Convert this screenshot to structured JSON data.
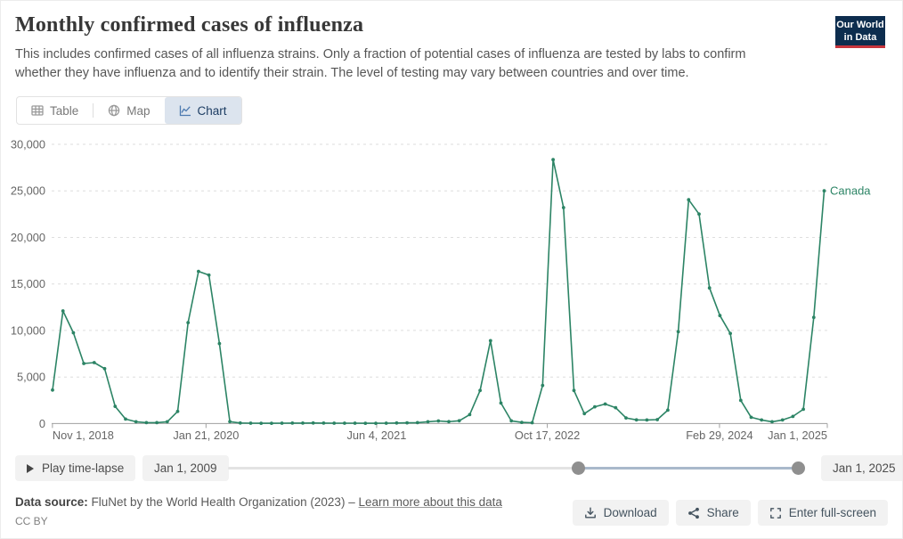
{
  "header": {
    "title": "Monthly confirmed cases of influenza",
    "subtitle": "This includes confirmed cases of all influenza strains. Only a fraction of potential cases of influenza are tested by labs to confirm whether they have influenza and to identify their strain. The level of testing may vary between countries and over time.",
    "logo_line1": "Our World",
    "logo_line2": "in Data"
  },
  "tabs": [
    {
      "label": "Table",
      "active": false
    },
    {
      "label": "Map",
      "active": false
    },
    {
      "label": "Chart",
      "active": true
    }
  ],
  "chart_data": {
    "type": "line",
    "title": "Monthly confirmed cases of influenza",
    "grid": "horizontal-dashed",
    "legend": "series-end-label",
    "ylim": [
      0,
      30000
    ],
    "yticks": [
      0,
      5000,
      10000,
      15000,
      20000,
      25000,
      30000
    ],
    "x_tick_labels": [
      "Nov 1, 2018",
      "Jan 21, 2020",
      "Jun 4, 2021",
      "Oct 17, 2022",
      "Feb 29, 2024",
      "Jan 1, 2025"
    ],
    "x": [
      "Nov 2018",
      "Dec 2018",
      "Jan 2019",
      "Feb 2019",
      "Mar 2019",
      "Apr 2019",
      "May 2019",
      "Jun 2019",
      "Jul 2019",
      "Aug 2019",
      "Sep 2019",
      "Oct 2019",
      "Nov 2019",
      "Dec 2019",
      "Jan 2020",
      "Feb 2020",
      "Mar 2020",
      "Apr 2020",
      "May 2020",
      "Jun 2020",
      "Jul 2020",
      "Aug 2020",
      "Sep 2020",
      "Oct 2020",
      "Nov 2020",
      "Dec 2020",
      "Jan 2021",
      "Feb 2021",
      "Mar 2021",
      "Apr 2021",
      "May 2021",
      "Jun 2021",
      "Jul 2021",
      "Aug 2021",
      "Sep 2021",
      "Oct 2021",
      "Nov 2021",
      "Dec 2021",
      "Jan 2022",
      "Feb 2022",
      "Mar 2022",
      "Apr 2022",
      "May 2022",
      "Jun 2022",
      "Jul 2022",
      "Aug 2022",
      "Sep 2022",
      "Oct 2022",
      "Nov 2022",
      "Dec 2022",
      "Jan 2023",
      "Feb 2023",
      "Mar 2023",
      "Apr 2023",
      "May 2023",
      "Jun 2023",
      "Jul 2023",
      "Aug 2023",
      "Sep 2023",
      "Oct 2023",
      "Nov 2023",
      "Dec 2023",
      "Jan 2024",
      "Feb 2024",
      "Mar 2024",
      "Apr 2024",
      "May 2024",
      "Jun 2024",
      "Jul 2024",
      "Aug 2024",
      "Sep 2024",
      "Oct 2024",
      "Nov 2024",
      "Dec 2024",
      "Jan 2025"
    ],
    "series": [
      {
        "name": "Canada",
        "color": "#2c8465",
        "values": [
          3600,
          12100,
          9750,
          6450,
          6550,
          5900,
          1850,
          480,
          190,
          100,
          100,
          190,
          1300,
          10850,
          16350,
          15950,
          8600,
          200,
          60,
          40,
          30,
          30,
          40,
          50,
          50,
          60,
          50,
          40,
          40,
          40,
          30,
          30,
          40,
          60,
          80,
          100,
          190,
          280,
          200,
          300,
          960,
          3550,
          8900,
          2200,
          290,
          120,
          90,
          4100,
          28350,
          23200,
          3550,
          1060,
          1800,
          2100,
          1700,
          600,
          390,
          380,
          420,
          1440,
          9870,
          24050,
          22500,
          14570,
          11600,
          9680,
          2490,
          670,
          380,
          190,
          380,
          770,
          1530,
          11400,
          25000
        ]
      }
    ]
  },
  "timeline": {
    "play_label": "Play time-lapse",
    "start_label": "Jan 1, 2009",
    "end_label": "Jan 1, 2025",
    "selection_fractions": [
      0.607,
      0.988
    ]
  },
  "footer": {
    "source_label": "Data source:",
    "source_text": "FluNet by the World Health Organization (2023)",
    "separator": "–",
    "link_label": "Learn more about this data",
    "license": "CC BY"
  },
  "actions": [
    {
      "label": "Download"
    },
    {
      "label": "Share"
    },
    {
      "label": "Enter full-screen"
    }
  ]
}
